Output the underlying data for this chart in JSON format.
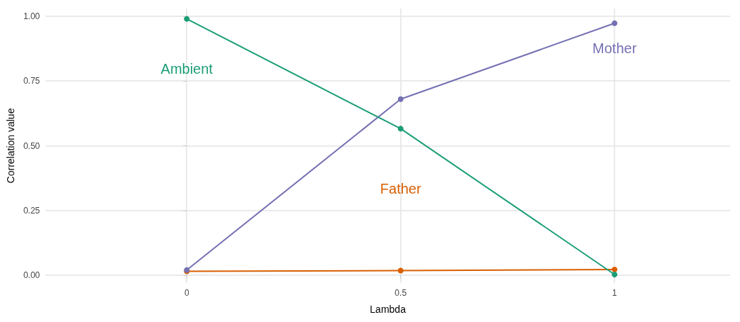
{
  "chart_data": {
    "type": "line",
    "xlabel": "Lambda",
    "ylabel": "Correlation value",
    "x": [
      0,
      0.5,
      1
    ],
    "series": [
      {
        "name": "Ambient",
        "color": "#1b9e77",
        "values": [
          0.99,
          0.566,
          0.003
        ]
      },
      {
        "name": "Mother",
        "color": "#7570b3",
        "values": [
          0.02,
          0.68,
          0.973
        ]
      },
      {
        "name": "Father",
        "color": "#d95f02",
        "values": [
          0.015,
          0.018,
          0.022
        ]
      }
    ],
    "xlim": [
      -0.33,
      1.27
    ],
    "xticks": [
      0,
      0.5,
      1
    ],
    "ylim": [
      -0.03,
      1.03
    ],
    "yticks": [
      {
        "value": 0,
        "label": "0.00"
      },
      {
        "value": 0.25,
        "label": "0.25"
      },
      {
        "value": 0.5,
        "label": "0.50"
      },
      {
        "value": 0.75,
        "label": "0.75"
      },
      {
        "value": 1,
        "label": "1.00"
      }
    ],
    "grid": true,
    "marker": "circle",
    "line_style": "solid"
  }
}
